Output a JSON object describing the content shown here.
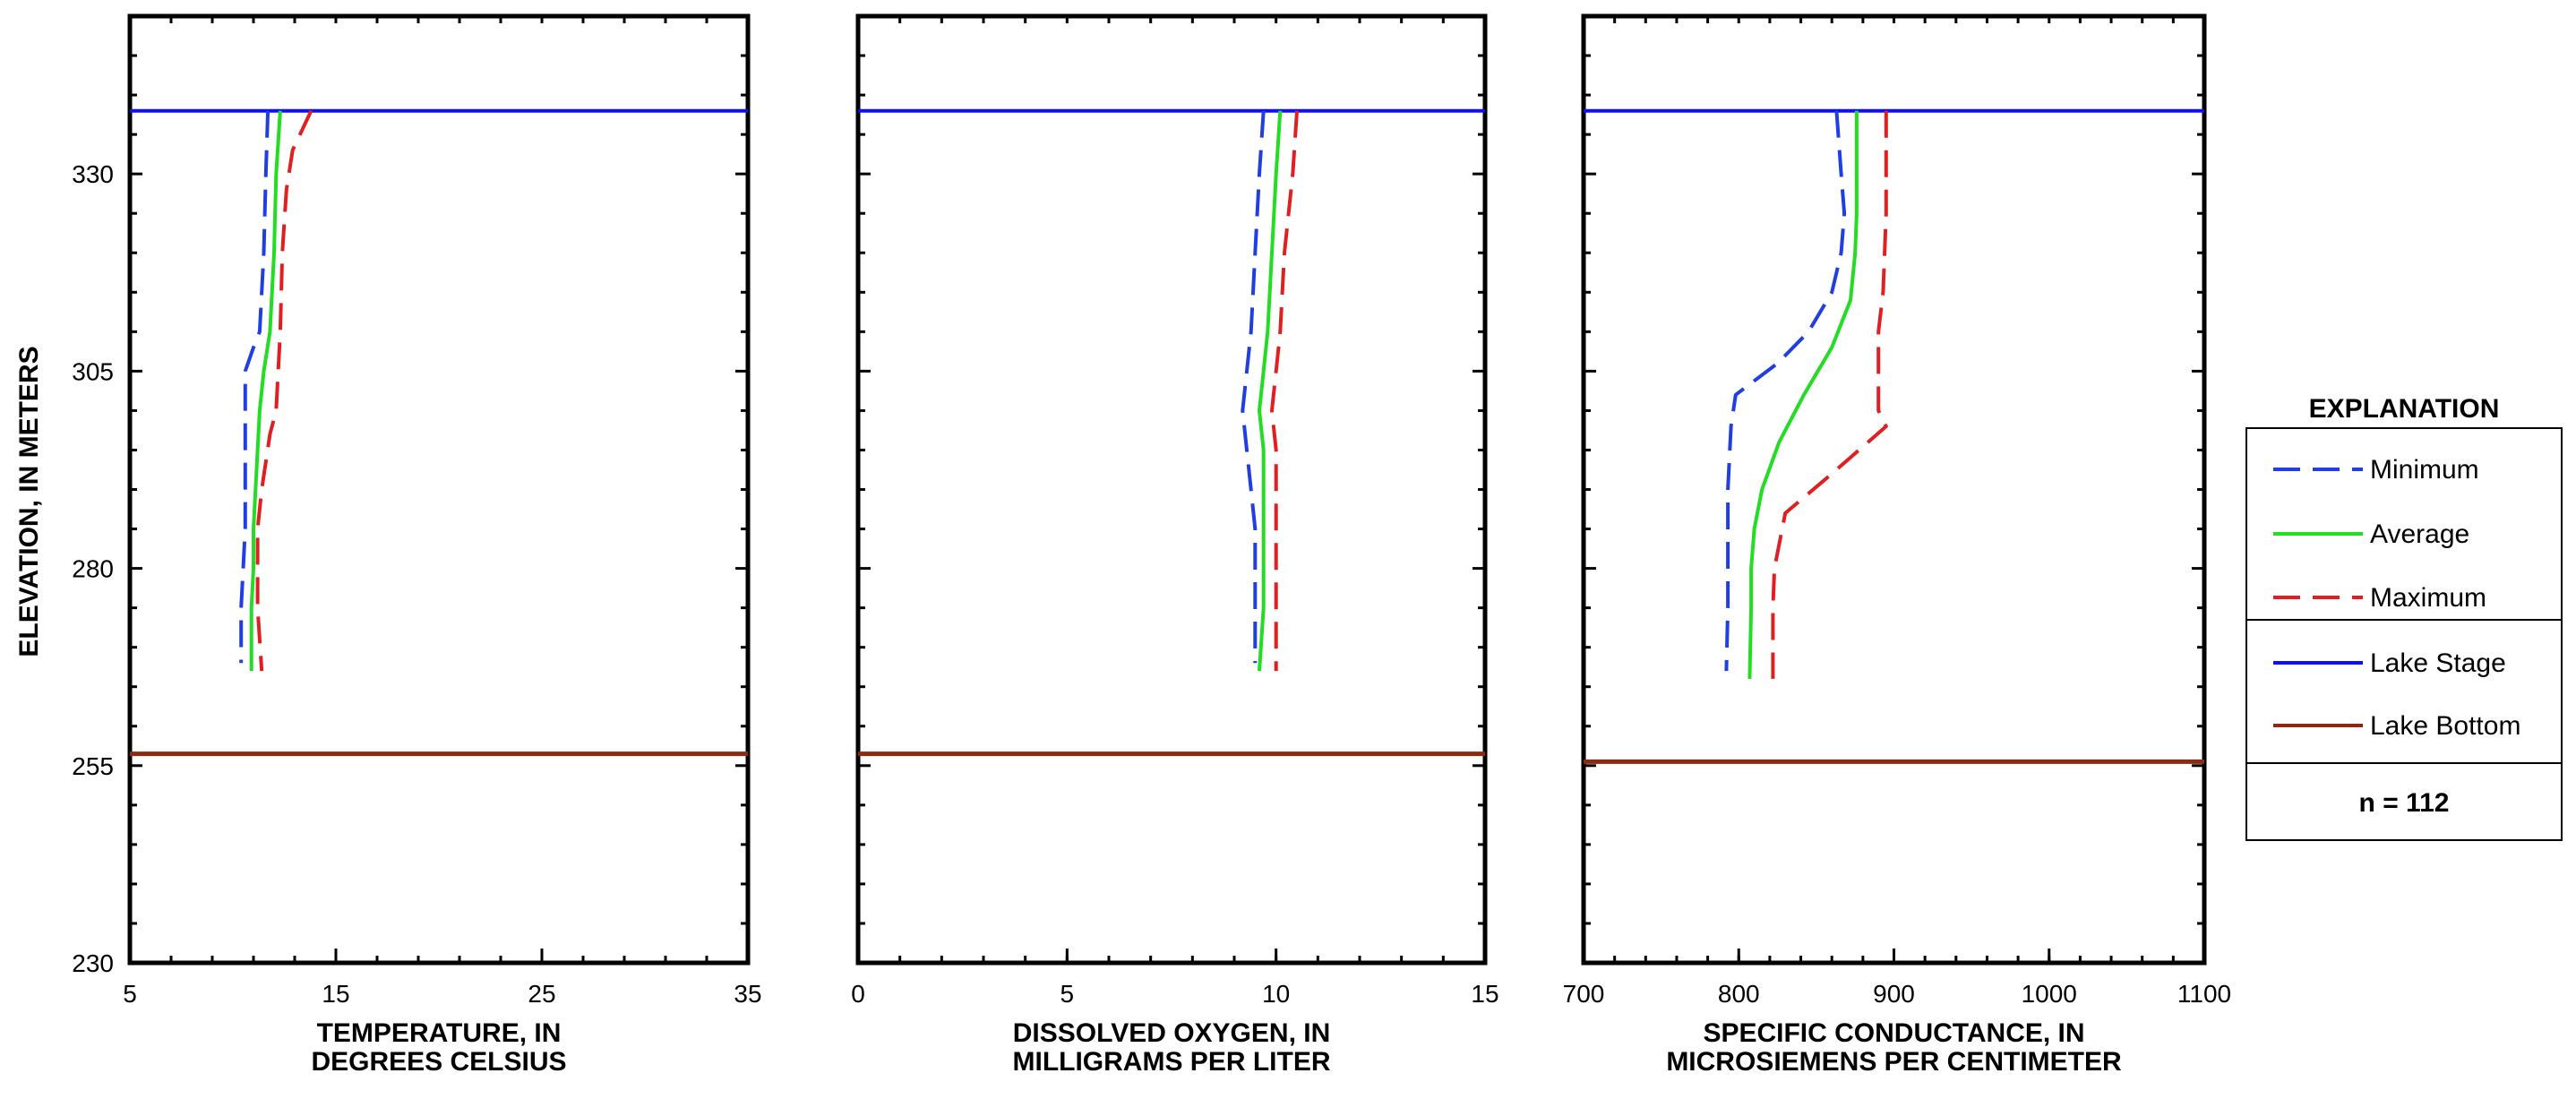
{
  "chart_data": [
    {
      "type": "line",
      "xlabel": [
        "TEMPERATURE, IN",
        "DEGREES CELSIUS"
      ],
      "ylabel": "ELEVATION, IN METERS",
      "xlim": [
        5,
        35
      ],
      "ylim": [
        230,
        350
      ],
      "xticks": [
        5,
        15,
        25,
        35
      ],
      "yticks": [
        230,
        255,
        280,
        305,
        330
      ],
      "lake_stage": 338,
      "lake_bottom": 256.5,
      "series": [
        {
          "name": "Minimum",
          "x": [
            11.7,
            11.6,
            11.5,
            11.3,
            11.0,
            10.6,
            10.6,
            10.6,
            10.6,
            10.6,
            10.5,
            10.4,
            10.4
          ],
          "y": [
            338,
            330,
            320,
            310,
            308,
            305,
            300,
            295,
            290,
            285,
            280,
            275,
            268
          ]
        },
        {
          "name": "Average",
          "x": [
            12.3,
            12.1,
            12.0,
            11.9,
            11.8,
            11.5,
            11.3,
            11.2,
            11.1,
            11.0,
            11.0,
            10.9,
            10.9
          ],
          "y": [
            338,
            330,
            320,
            315,
            310,
            305,
            300,
            295,
            290,
            285,
            280,
            275,
            267
          ]
        },
        {
          "name": "Maximum",
          "x": [
            13.8,
            12.9,
            12.6,
            12.4,
            12.3,
            12.2,
            12.1,
            11.8,
            11.4,
            11.2,
            11.2,
            11.2,
            11.4
          ],
          "y": [
            338,
            333,
            328,
            320,
            310,
            305,
            300,
            297,
            290,
            285,
            280,
            275,
            267
          ]
        }
      ]
    },
    {
      "type": "line",
      "xlabel": [
        "DISSOLVED OXYGEN, IN",
        "MILLIGRAMS PER LITER"
      ],
      "ylabel": "",
      "xlim": [
        0,
        15
      ],
      "ylim": [
        230,
        350
      ],
      "xticks": [
        0,
        5,
        10,
        15
      ],
      "yticks": [
        230,
        255,
        280,
        305,
        330
      ],
      "lake_stage": 338,
      "lake_bottom": 256.5,
      "series": [
        {
          "name": "Minimum",
          "x": [
            9.7,
            9.6,
            9.5,
            9.4,
            9.3,
            9.2,
            9.3,
            9.4,
            9.5,
            9.5,
            9.5,
            9.5
          ],
          "y": [
            338,
            330,
            320,
            310,
            305,
            300,
            295,
            290,
            285,
            280,
            275,
            268
          ]
        },
        {
          "name": "Average",
          "x": [
            10.1,
            10.0,
            9.9,
            9.8,
            9.7,
            9.6,
            9.7,
            9.7,
            9.7,
            9.7,
            9.7,
            9.6
          ],
          "y": [
            338,
            330,
            320,
            310,
            305,
            300,
            295,
            290,
            285,
            280,
            275,
            267
          ]
        },
        {
          "name": "Maximum",
          "x": [
            10.5,
            10.4,
            10.2,
            10.1,
            10.0,
            9.9,
            10.0,
            10.0,
            10.0,
            10.0,
            10.0,
            10.0
          ],
          "y": [
            338,
            330,
            320,
            310,
            305,
            300,
            295,
            290,
            285,
            280,
            275,
            267
          ]
        }
      ]
    },
    {
      "type": "line",
      "xlabel": [
        "SPECIFIC CONDUCTANCE,  IN",
        "MICROSIEMENS PER CENTIMETER"
      ],
      "ylabel": "",
      "xlim": [
        700,
        1100
      ],
      "ylim": [
        230,
        350
      ],
      "xticks": [
        700,
        800,
        900,
        1000,
        1100
      ],
      "yticks": [
        230,
        255,
        280,
        305,
        330
      ],
      "lake_stage": 338,
      "lake_bottom": 255.5,
      "series": [
        {
          "name": "Minimum",
          "x": [
            863,
            866,
            868,
            866,
            860,
            845,
            825,
            798,
            795,
            793,
            793,
            793,
            792
          ],
          "y": [
            338,
            330,
            325,
            320,
            315,
            310,
            306,
            302,
            298,
            290,
            280,
            275,
            267
          ]
        },
        {
          "name": "Average",
          "x": [
            876,
            876,
            876,
            875,
            872,
            860,
            842,
            826,
            815,
            810,
            808,
            808,
            807
          ],
          "y": [
            338,
            330,
            325,
            320,
            314,
            308,
            302,
            296,
            290,
            285,
            280,
            275,
            266
          ]
        },
        {
          "name": "Maximum",
          "x": [
            895,
            895,
            895,
            893,
            890,
            890,
            890,
            895,
            860,
            830,
            823,
            822,
            822
          ],
          "y": [
            338,
            330,
            325,
            315,
            310,
            305,
            300,
            298,
            292,
            287,
            280,
            275,
            266
          ]
        }
      ]
    }
  ],
  "legend": {
    "title": "EXPLANATION",
    "entries": [
      {
        "label": "Minimum",
        "color": "#1f3fe0",
        "style": "dashed"
      },
      {
        "label": "Average",
        "color": "#22dd22",
        "style": "solid"
      },
      {
        "label": "Maximum",
        "color": "#e02020",
        "style": "dashed"
      },
      {
        "label": "Lake Stage",
        "color": "#1010ee",
        "style": "solid"
      },
      {
        "label": "Lake Bottom",
        "color": "#8b2a10",
        "style": "solid"
      }
    ],
    "note": "n = 112"
  },
  "colors": {
    "minimum": "#1f3fe0",
    "average": "#22dd22",
    "maximum": "#e02020",
    "lake_stage": "#1010ee",
    "lake_bottom": "#8b2a10"
  }
}
